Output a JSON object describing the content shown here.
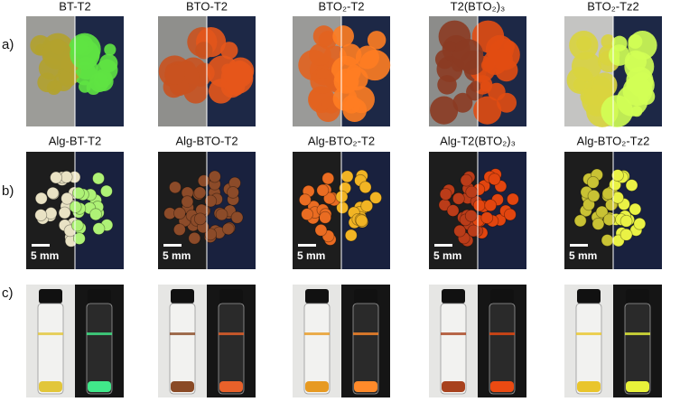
{
  "panels": [
    {
      "label": "a)",
      "items": [
        "BT-T2",
        "BTO-T2",
        "BTO₂-T2",
        "T2(BTO₂)₃",
        "BTO₂-Tz2"
      ]
    },
    {
      "label": "b)",
      "items": [
        "Alg-BT-T2",
        "Alg-BTO-T2",
        "Alg-BTO₂-T2",
        "Alg-T2(BTO₂)₃",
        "Alg-BTO₂-Tz2"
      ],
      "scale_bars": [
        "5 mm",
        "5 mm",
        "5 mm",
        "5 mm",
        "5 mm"
      ]
    },
    {
      "label": "c)"
    }
  ]
}
